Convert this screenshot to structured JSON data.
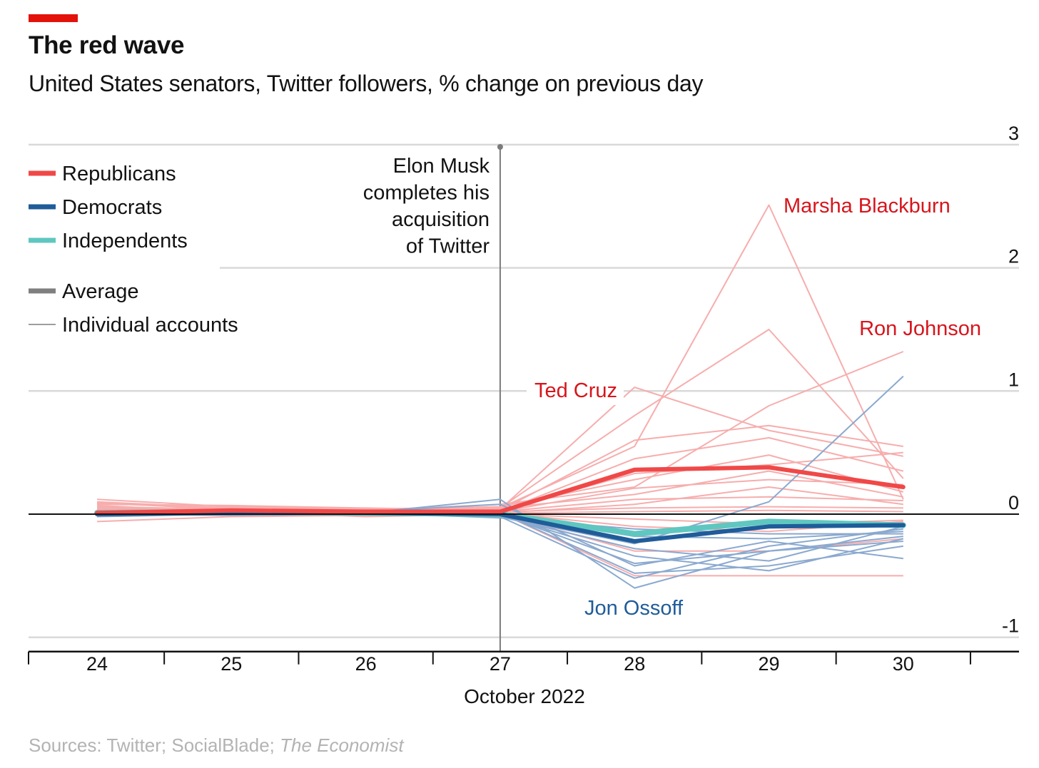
{
  "header": {
    "title": "The red wave",
    "subtitle": "United States senators, Twitter followers, % change on previous day"
  },
  "source": {
    "prefix": "Sources: Twitter; SocialBlade; ",
    "publication": "The Economist"
  },
  "colors": {
    "accent": "#e3120b",
    "republicans": "#f04848",
    "republicans_light": "#f7adad",
    "democrats": "#1f5c99",
    "democrats_light": "#8aa9cf",
    "independents": "#5fc7c0",
    "average_legend": "#7f7f7f",
    "individual_legend": "#9e9e9e",
    "label_red": "#d7151c",
    "label_blue": "#1f5c99"
  },
  "chart_data": {
    "type": "line",
    "title": "The red wave",
    "subtitle": "United States senators, Twitter followers, % change on previous day",
    "xlabel": "October 2022",
    "ylabel": "",
    "x": [
      "24",
      "25",
      "26",
      "27",
      "28",
      "29",
      "30"
    ],
    "x_extra_tick": 31,
    "ylim": [
      -1,
      3
    ],
    "y_ticks": [
      "3",
      "2",
      "1",
      "0",
      "-1"
    ],
    "grid": true,
    "legend": {
      "placement": "top-left",
      "items": [
        {
          "label": "Republicans",
          "color": "#f04848",
          "weight": "thick"
        },
        {
          "label": "Democrats",
          "color": "#1f5c99",
          "weight": "thick"
        },
        {
          "label": "Independents",
          "color": "#5fc7c0",
          "weight": "thick"
        },
        {
          "label": "Average",
          "color": "#7f7f7f",
          "weight": "thick"
        },
        {
          "label": "Individual accounts",
          "color": "#9e9e9e",
          "weight": "thin"
        }
      ]
    },
    "event": {
      "x": 27,
      "text": [
        "Elon Musk",
        "completes his",
        "acquisition",
        "of Twitter"
      ]
    },
    "averages": [
      {
        "name": "Independents",
        "values": [
          0.01,
          0.02,
          0.01,
          0.0,
          -0.16,
          -0.06,
          -0.09
        ]
      },
      {
        "name": "Democrats",
        "values": [
          0.0,
          0.01,
          0.01,
          0.0,
          -0.22,
          -0.1,
          -0.09
        ]
      },
      {
        "name": "Republicans",
        "values": [
          0.01,
          0.03,
          0.02,
          0.02,
          0.36,
          0.38,
          0.22
        ]
      }
    ],
    "individual_republicans": [
      [
        0.12,
        0.06,
        0.04,
        0.05,
        0.55,
        2.51,
        0.12
      ],
      [
        0.1,
        0.05,
        0.03,
        0.04,
        1.03,
        0.68,
        0.47
      ],
      [
        0.06,
        0.04,
        0.03,
        0.08,
        0.22,
        0.88,
        1.32
      ],
      [
        0.04,
        0.03,
        0.02,
        0.05,
        0.8,
        1.5,
        0.29
      ],
      [
        0.08,
        0.07,
        0.05,
        0.03,
        0.6,
        0.72,
        0.55
      ],
      [
        0.02,
        0.05,
        0.03,
        0.02,
        0.45,
        0.62,
        0.35
      ],
      [
        0.09,
        0.04,
        0.02,
        0.03,
        0.33,
        0.4,
        0.5
      ],
      [
        0.05,
        0.03,
        0.04,
        0.06,
        0.28,
        0.48,
        0.18
      ],
      [
        0.03,
        0.06,
        0.03,
        0.02,
        0.21,
        0.28,
        0.24
      ],
      [
        0.07,
        0.02,
        0.03,
        0.05,
        0.16,
        0.35,
        0.14
      ],
      [
        0.02,
        0.04,
        0.02,
        0.02,
        0.12,
        0.14,
        0.11
      ],
      [
        0.01,
        0.03,
        0.01,
        0.01,
        0.08,
        0.22,
        0.08
      ],
      [
        -0.06,
        -0.02,
        -0.01,
        0.02,
        0.05,
        0.06,
        0.05
      ],
      [
        0.04,
        0.01,
        0.0,
        0.01,
        0.02,
        0.03,
        0.02
      ],
      [
        0.0,
        0.02,
        -0.02,
        0.0,
        -0.04,
        -0.08,
        -0.05
      ],
      [
        0.03,
        0.02,
        0.01,
        0.01,
        -0.1,
        -0.14,
        -0.06
      ],
      [
        0.01,
        0.0,
        0.01,
        0.0,
        -0.3,
        -0.3,
        -0.2
      ],
      [
        0.02,
        0.01,
        0.02,
        0.01,
        -0.5,
        -0.5,
        -0.5
      ]
    ],
    "individual_democrats": [
      [
        0.01,
        0.02,
        0.02,
        0.08,
        -0.42,
        -0.22,
        -0.36
      ],
      [
        0.0,
        0.01,
        0.01,
        0.12,
        -0.6,
        -0.3,
        -0.22
      ],
      [
        0.02,
        0.0,
        0.02,
        -0.02,
        -0.24,
        0.1,
        1.12
      ],
      [
        -0.01,
        0.01,
        0.0,
        -0.01,
        -0.34,
        -0.46,
        -0.2
      ],
      [
        0.01,
        0.02,
        0.01,
        0.0,
        -0.18,
        -0.2,
        -0.14
      ],
      [
        0.0,
        -0.01,
        0.0,
        -0.02,
        -0.28,
        -0.38,
        -0.1
      ],
      [
        0.02,
        0.01,
        0.02,
        0.01,
        -0.48,
        -0.42,
        -0.26
      ],
      [
        -0.02,
        0.0,
        0.01,
        -0.03,
        -0.12,
        -0.16,
        -0.16
      ],
      [
        0.01,
        0.02,
        0.02,
        0.0,
        -0.4,
        -0.3,
        -0.18
      ],
      [
        0.0,
        0.01,
        0.0,
        -0.02,
        -0.52,
        -0.26,
        -0.12
      ]
    ],
    "annotations": [
      {
        "text": "Marsha Blackburn",
        "color": "#d7151c"
      },
      {
        "text": "Ron Johnson",
        "color": "#d7151c"
      },
      {
        "text": "Ted Cruz",
        "color": "#d7151c"
      },
      {
        "text": "Jon Ossoff",
        "color": "#1f5c99"
      }
    ]
  }
}
